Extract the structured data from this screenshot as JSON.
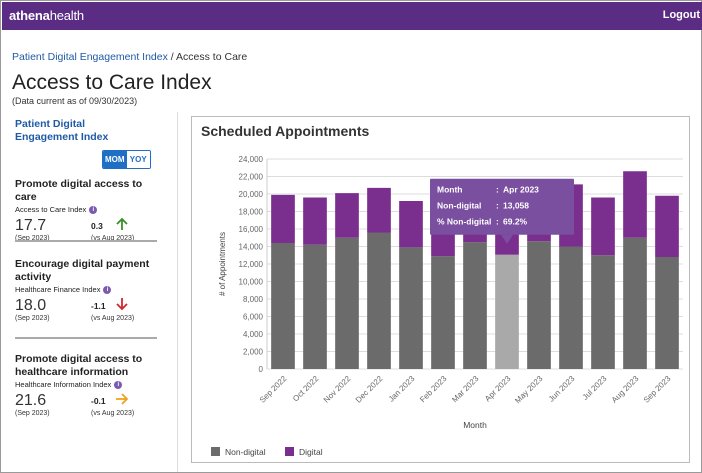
{
  "header": {
    "logo_bold": "athena",
    "logo_rest": "health",
    "logout_label": "Logout"
  },
  "breadcrumb": {
    "parent": "Patient Digital Engagement Index",
    "separator": "/",
    "current": "Access to Care"
  },
  "page": {
    "title": "Access to Care Index",
    "data_current": "(Data current as of 09/30/2023)"
  },
  "sidebar": {
    "title": "Patient Digital Engagement Index",
    "toggle": {
      "mom": "MOM",
      "yoy": "YOY",
      "selected": "MOM"
    },
    "metrics": [
      {
        "title": "Promote digital access to care",
        "index_name": "Access to Care Index",
        "info": "i",
        "value": "17.7",
        "value_period": "(Sep 2023)",
        "change": "0.3",
        "change_period": "(vs Aug 2023)",
        "direction": "up",
        "arrow_color": "#3a8f2c"
      },
      {
        "title": "Encourage digital payment activity",
        "index_name": "Healthcare Finance Index",
        "info": "i",
        "value": "18.0",
        "value_period": "(Sep 2023)",
        "change": "-1.1",
        "change_period": "(vs Aug 2023)",
        "direction": "down",
        "arrow_color": "#d0282e"
      },
      {
        "title": "Promote digital access to healthcare information",
        "index_name": "Healthcare Information Index",
        "info": "i",
        "value": "21.6",
        "value_period": "(Sep 2023)",
        "change": "-0.1",
        "change_period": "(vs Aug 2023)",
        "direction": "flat",
        "arrow_color": "#f0a020"
      }
    ]
  },
  "chart_data": {
    "type": "bar",
    "stacked": true,
    "title": "Scheduled Appointments",
    "xlabel": "Month",
    "ylabel": "# of Appointments",
    "ylim": [
      0,
      24000
    ],
    "yticks": [
      "0",
      "2,000",
      "4,000",
      "6,000",
      "8,000",
      "10,000",
      "12,000",
      "14,000",
      "16,000",
      "18,000",
      "20,000",
      "22,000",
      "24,000"
    ],
    "grid": true,
    "legend_position": "bottom-left",
    "categories": [
      "Sep 2022",
      "Oct 2022",
      "Nov 2022",
      "Dec 2022",
      "Jan 2023",
      "Feb 2023",
      "Mar 2023",
      "Apr 2023",
      "May 2023",
      "Jun 2023",
      "Jul 2023",
      "Aug 2023",
      "Sep 2023"
    ],
    "series": [
      {
        "name": "Non-digital",
        "color": "#6b6b6b",
        "values": [
          14400,
          14200,
          15000,
          15600,
          13900,
          12900,
          14500,
          13058,
          14600,
          14000,
          13000,
          15000,
          12800
        ]
      },
      {
        "name": "Digital",
        "color": "#7a2e8e",
        "values": [
          5500,
          5400,
          5100,
          5100,
          5300,
          4900,
          6300,
          5800,
          6900,
          7100,
          6600,
          7600,
          7000
        ]
      }
    ],
    "highlight_index": 7,
    "highlight_color": "#a9a9a9",
    "tooltip": {
      "rows": [
        {
          "label": "Month",
          "value": "Apr 2023"
        },
        {
          "label": "Non-digital",
          "value": "13,058"
        },
        {
          "label": "% Non-digital",
          "value": "69.2%"
        }
      ],
      "separator": ":",
      "color": "#7a4fa0"
    }
  }
}
